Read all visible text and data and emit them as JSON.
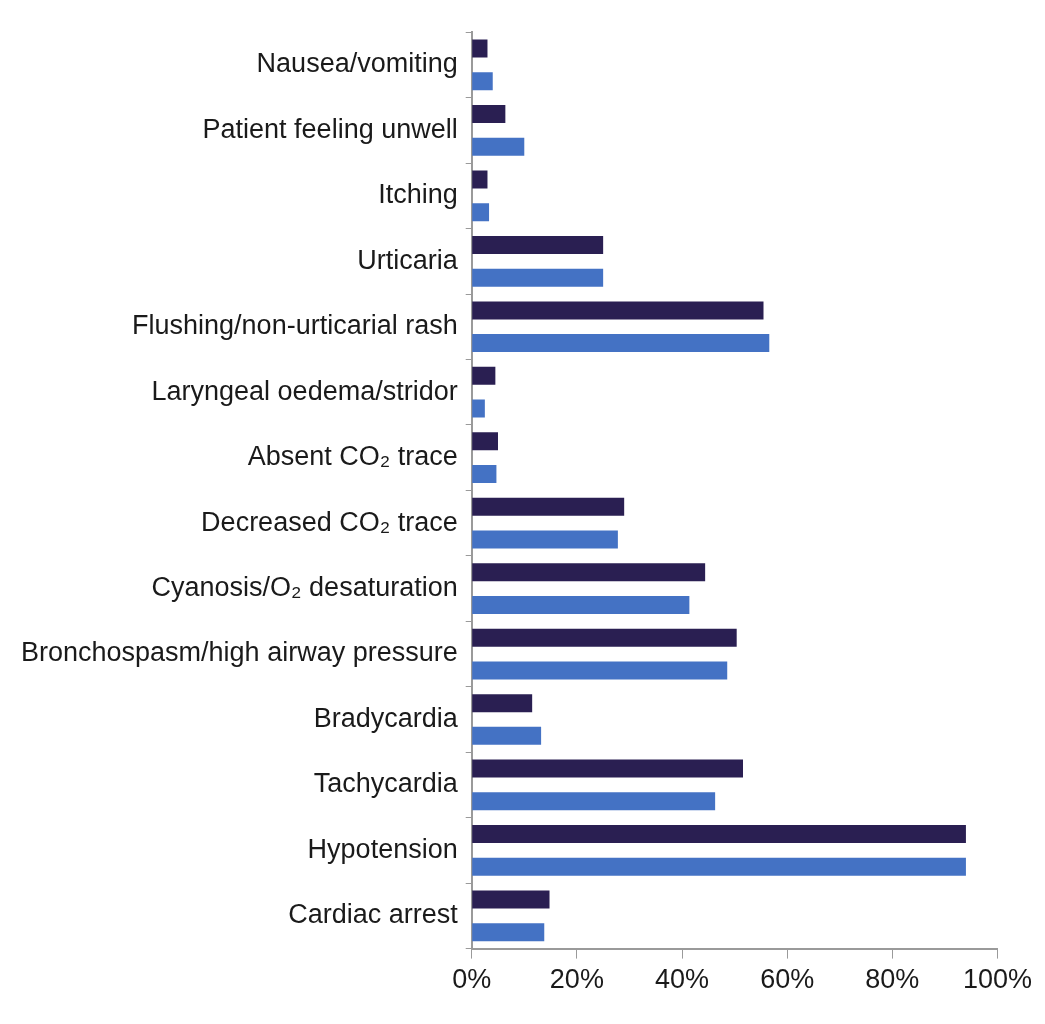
{
  "chart_data": {
    "type": "bar",
    "orientation": "horizontal",
    "categories": [
      "Nausea/vomiting",
      "Patient feeling unwell",
      "Itching",
      "Urticaria",
      "Flushing/non-urticarial rash",
      "Laryngeal oedema/stridor",
      "Absent CO₂ trace",
      "Decreased CO₂ trace",
      "Cyanosis/O₂ desaturation",
      "Bronchospasm/high airway pressure",
      "Bradycardia",
      "Tachycardia",
      "Hypotension",
      "Cardiac arrest"
    ],
    "series": [
      {
        "color": "#2a1f52",
        "values": [
          3,
          6.4,
          3,
          25,
          55.5,
          4.5,
          5,
          29,
          44.4,
          50.4,
          11.5,
          51.6,
          94,
          14.8
        ]
      },
      {
        "color": "#4472c4",
        "values": [
          4,
          10,
          3.3,
          25,
          56.6,
          2.5,
          4.7,
          27.8,
          41.4,
          48.6,
          13.2,
          46.3,
          94,
          13.8
        ]
      }
    ],
    "xlim": [
      0,
      100
    ],
    "xticks": [
      {
        "value": 0,
        "label": "0%"
      },
      {
        "value": 20,
        "label": "20%"
      },
      {
        "value": 40,
        "label": "40%"
      },
      {
        "value": 60,
        "label": "60%"
      },
      {
        "value": 80,
        "label": "80%"
      },
      {
        "value": 100,
        "label": "100%"
      }
    ],
    "grid": false,
    "legend": false
  }
}
